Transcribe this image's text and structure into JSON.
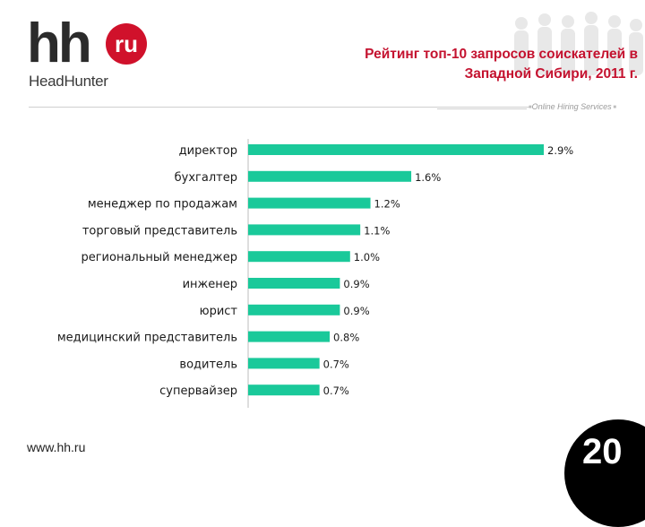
{
  "logo": {
    "hh": "hh",
    "ru": "ru",
    "brand": "HeadHunter"
  },
  "header": {
    "title_line1": "Рейтинг топ-10 запросов соискателей в",
    "title_line2": "Западной Сибири, 2011 г.",
    "tagline": "Online Hiring Services"
  },
  "colors": {
    "bar": "#1ac99a",
    "title": "#c4122f",
    "logo_ru": "#d0112b"
  },
  "chart_data": {
    "type": "bar",
    "orientation": "horizontal",
    "categories": [
      "директор",
      "бухгалтер",
      "менеджер по продажам",
      "торговый представитель",
      "региональный менеджер",
      "инженер",
      "юрист",
      "медицинский представитель",
      "водитель",
      "супервайзер"
    ],
    "values": [
      2.9,
      1.6,
      1.2,
      1.1,
      1.0,
      0.9,
      0.9,
      0.8,
      0.7,
      0.7
    ],
    "value_labels": [
      "2.9%",
      "1.6%",
      "1.2%",
      "1.1%",
      "1.0%",
      "0.9%",
      "0.9%",
      "0.8%",
      "0.7%",
      "0.7%"
    ],
    "title": "Рейтинг топ-10 запросов соискателей в Западной Сибири, 2011 г.",
    "xlabel": "",
    "ylabel": "",
    "xlim": [
      0,
      2.9
    ],
    "grid": false,
    "legend": "none"
  },
  "footer": {
    "website": "www.hh.ru",
    "page_number": "20"
  }
}
